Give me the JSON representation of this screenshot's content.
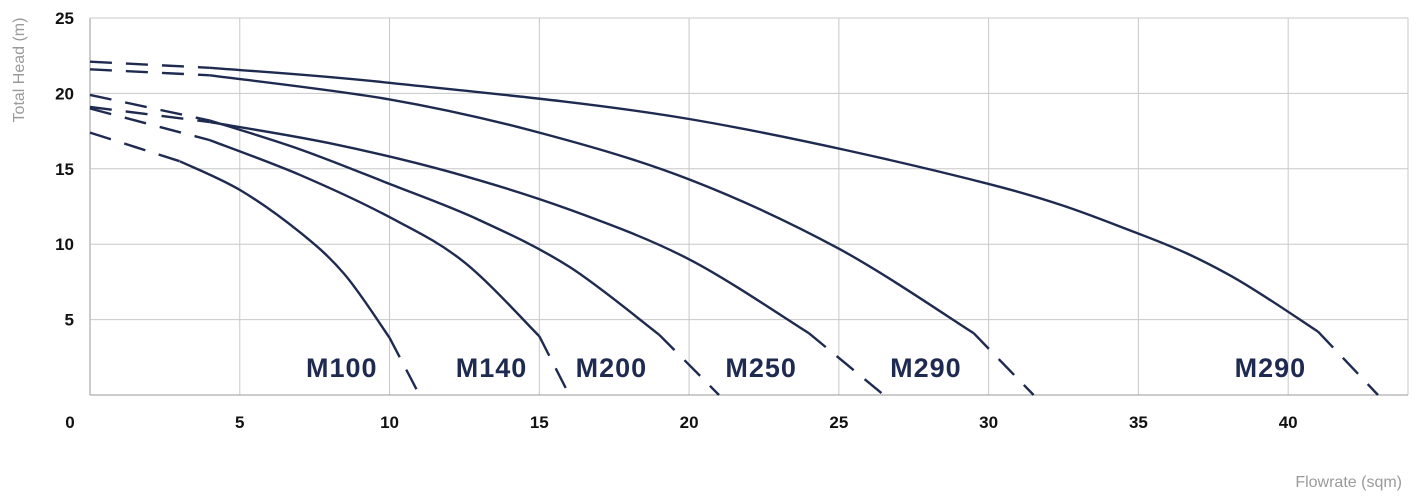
{
  "chart_data": {
    "type": "line",
    "xlabel": "Flowrate (sqm)",
    "ylabel": "Total Head (m)",
    "xlim": [
      0,
      44
    ],
    "ylim": [
      0,
      25
    ],
    "x_ticks": [
      "0",
      "5",
      "10",
      "15",
      "20",
      "25",
      "30",
      "35",
      "40"
    ],
    "y_ticks": [
      "5",
      "10",
      "15",
      "20",
      "25"
    ],
    "grid": true,
    "line_color": "#1f2a50",
    "series": [
      {
        "name": "M100",
        "points": [
          [
            0,
            17.4
          ],
          [
            3,
            15.5
          ],
          [
            5,
            13.6
          ],
          [
            7,
            10.8
          ],
          [
            8.5,
            8.0
          ],
          [
            10,
            3.8
          ],
          [
            11,
            0
          ]
        ]
      },
      {
        "name": "M140",
        "points": [
          [
            0,
            19.0
          ],
          [
            4,
            16.9
          ],
          [
            7,
            14.6
          ],
          [
            10,
            11.8
          ],
          [
            12.5,
            8.8
          ],
          [
            15,
            3.9
          ],
          [
            16,
            0
          ]
        ]
      },
      {
        "name": "M200",
        "points": [
          [
            0,
            19.9
          ],
          [
            4,
            18.2
          ],
          [
            7,
            16.3
          ],
          [
            10,
            14.0
          ],
          [
            13,
            11.6
          ],
          [
            16,
            8.5
          ],
          [
            19,
            4.0
          ],
          [
            21,
            0
          ]
        ]
      },
      {
        "name": "M250",
        "points": [
          [
            0,
            19.1
          ],
          [
            4,
            18.1
          ],
          [
            8,
            16.7
          ],
          [
            12,
            14.8
          ],
          [
            16,
            12.3
          ],
          [
            20,
            9.0
          ],
          [
            24,
            4.1
          ],
          [
            26.5,
            0
          ]
        ]
      },
      {
        "name": "M290",
        "points": [
          [
            0,
            21.6
          ],
          [
            4,
            21.2
          ],
          [
            10,
            19.6
          ],
          [
            15,
            17.4
          ],
          [
            20,
            14.3
          ],
          [
            25,
            9.7
          ],
          [
            29.5,
            4.1
          ],
          [
            31.5,
            0
          ]
        ]
      },
      {
        "name": "M290",
        "points": [
          [
            0,
            22.1
          ],
          [
            4,
            21.7
          ],
          [
            10,
            20.7
          ],
          [
            20,
            18.3
          ],
          [
            30,
            14.0
          ],
          [
            35,
            10.7
          ],
          [
            38,
            8.0
          ],
          [
            41,
            4.2
          ],
          [
            43,
            0
          ]
        ]
      }
    ]
  }
}
